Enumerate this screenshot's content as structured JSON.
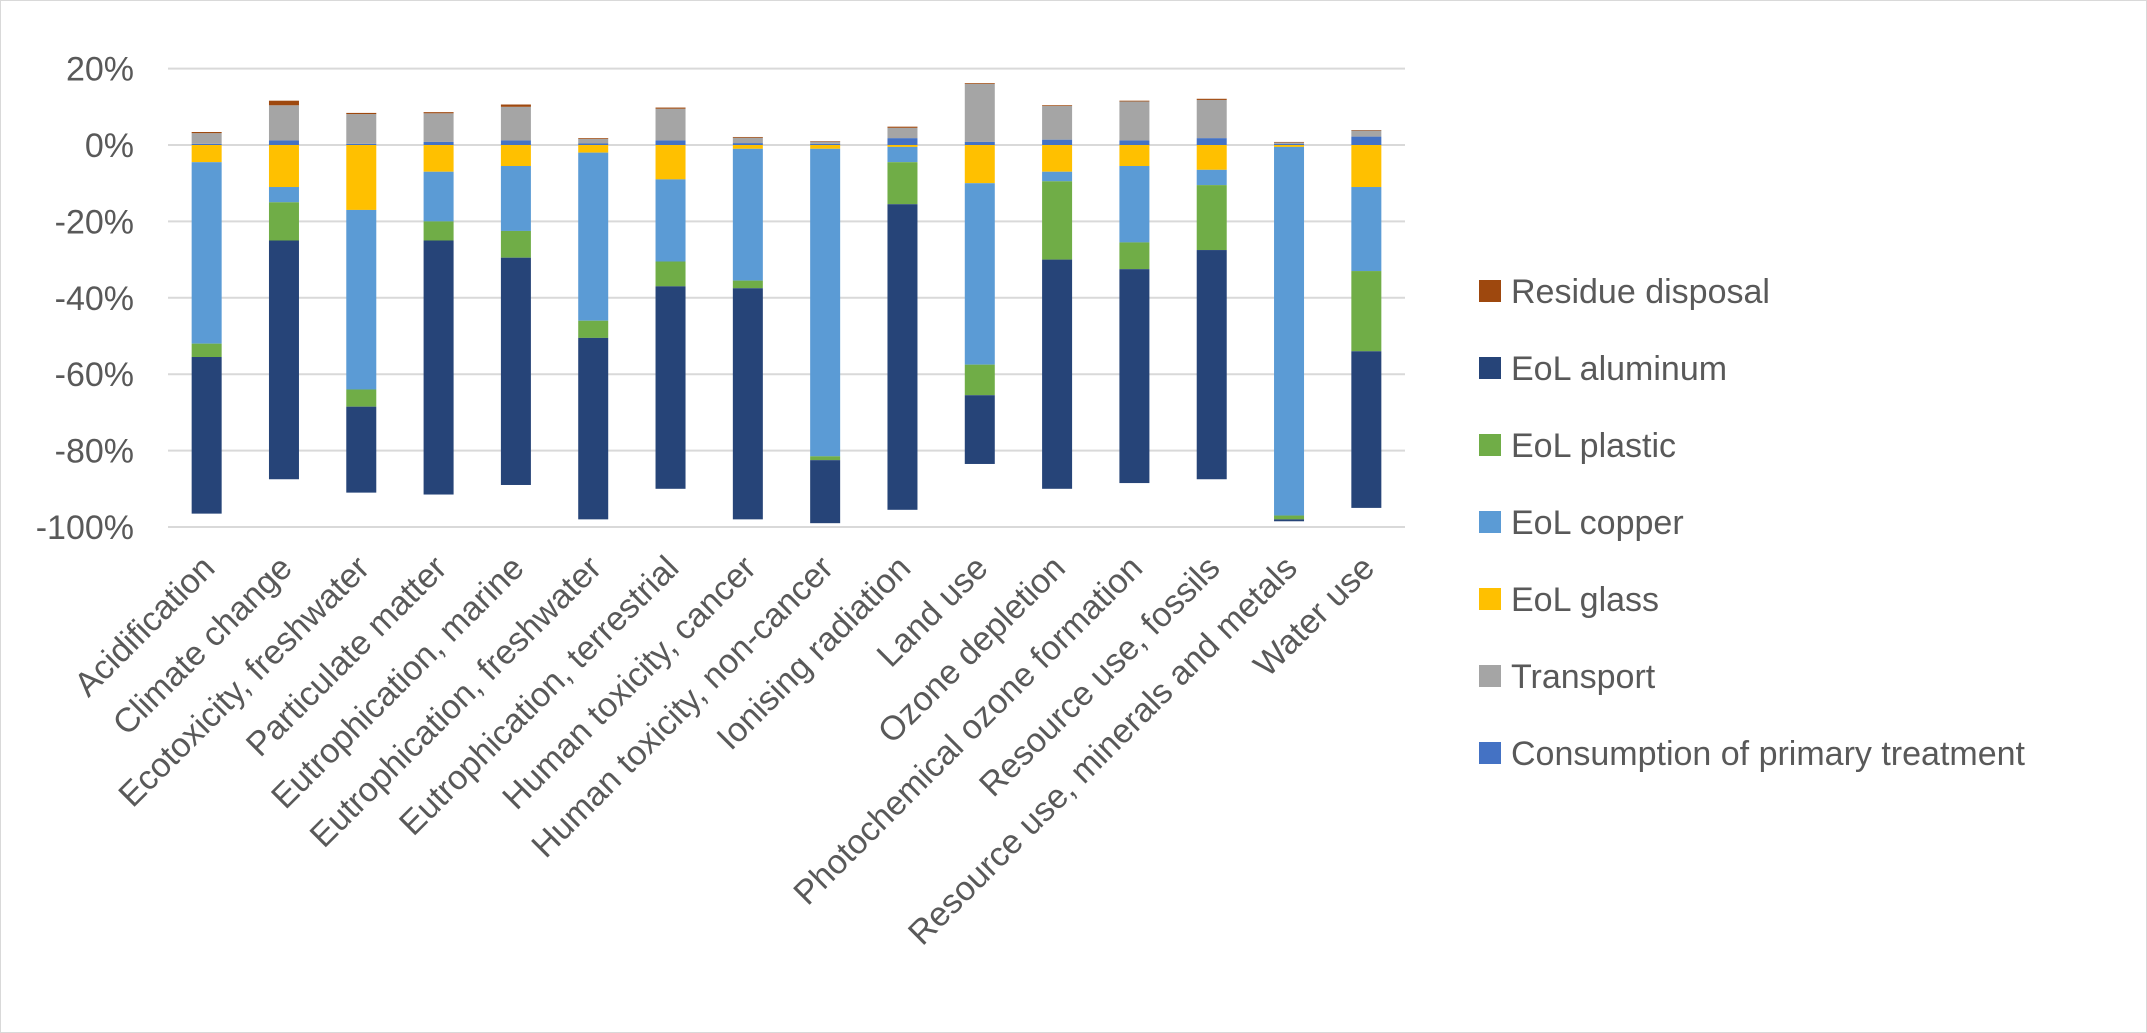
{
  "chart_data": {
    "type": "bar",
    "stacked": true,
    "title": "",
    "xlabel": "",
    "ylabel": "",
    "ylim": [
      -1.0,
      0.2
    ],
    "yticks": [
      0.2,
      0.0,
      -0.2,
      -0.4,
      -0.6,
      -0.8,
      -1.0
    ],
    "ytick_labels": [
      "20%",
      "0%",
      "-20%",
      "-40%",
      "-60%",
      "-80%",
      "-100%"
    ],
    "grid": true,
    "legend_position": "right",
    "categories": [
      "Acidification",
      "Climate change",
      "Ecotoxicity, freshwater",
      "Particulate matter",
      "Eutrophication, marine",
      "Eutrophication, freshwater",
      "Eutrophication, terrestrial",
      "Human toxicity, cancer",
      "Human toxicity, non-cancer",
      "Ionising radiation",
      "Land use",
      "Ozone depletion",
      "Photochemical ozone formation",
      "Resource use, fossils",
      "Resource use, minerals and metals",
      "Water use"
    ],
    "series": [
      {
        "name": "Consumption of primary treatment",
        "color": "#4472c4",
        "values": [
          0.003,
          0.012,
          0.003,
          0.008,
          0.012,
          0.004,
          0.012,
          0.005,
          0.003,
          0.018,
          0.008,
          0.014,
          0.012,
          0.018,
          0.003,
          0.022
        ]
      },
      {
        "name": "Transport",
        "color": "#a5a5a5",
        "values": [
          0.028,
          0.092,
          0.078,
          0.075,
          0.088,
          0.012,
          0.083,
          0.014,
          0.006,
          0.027,
          0.152,
          0.088,
          0.102,
          0.1,
          0.004,
          0.016
        ]
      },
      {
        "name": "EoL glass",
        "color": "#ffc000",
        "values": [
          -0.045,
          -0.11,
          -0.17,
          -0.07,
          -0.055,
          -0.02,
          -0.09,
          -0.01,
          -0.01,
          -0.005,
          -0.1,
          -0.07,
          -0.055,
          -0.065,
          -0.005,
          -0.11
        ]
      },
      {
        "name": "EoL copper",
        "color": "#5b9bd5",
        "values": [
          -0.475,
          -0.04,
          -0.47,
          -0.13,
          -0.17,
          -0.44,
          -0.215,
          -0.345,
          -0.805,
          -0.04,
          -0.475,
          -0.025,
          -0.2,
          -0.04,
          -0.965,
          -0.22
        ]
      },
      {
        "name": "EoL plastic",
        "color": "#70ad47",
        "values": [
          -0.035,
          -0.1,
          -0.045,
          -0.05,
          -0.07,
          -0.045,
          -0.065,
          -0.02,
          -0.01,
          -0.11,
          -0.08,
          -0.205,
          -0.07,
          -0.17,
          -0.01,
          -0.21
        ]
      },
      {
        "name": "EoL aluminum",
        "color": "#264478",
        "values": [
          -0.41,
          -0.625,
          -0.225,
          -0.665,
          -0.595,
          -0.475,
          -0.53,
          -0.605,
          -0.165,
          -0.8,
          -0.18,
          -0.6,
          -0.56,
          -0.6,
          -0.005,
          -0.41
        ]
      },
      {
        "name": "Residue disposal",
        "color": "#9e480e",
        "values": [
          0.003,
          0.012,
          0.003,
          0.003,
          0.006,
          0.002,
          0.003,
          0.002,
          0.001,
          0.003,
          0.002,
          0.002,
          0.002,
          0.003,
          0.001,
          0.001
        ]
      }
    ],
    "legend": [
      {
        "name": "Residue disposal",
        "color": "#9e480e"
      },
      {
        "name": "EoL aluminum",
        "color": "#264478"
      },
      {
        "name": "EoL plastic",
        "color": "#70ad47"
      },
      {
        "name": "EoL copper",
        "color": "#5b9bd5"
      },
      {
        "name": "EoL glass",
        "color": "#ffc000"
      },
      {
        "name": "Transport",
        "color": "#a5a5a5"
      },
      {
        "name": "Consumption of primary treatment",
        "color": "#4472c4"
      }
    ]
  }
}
